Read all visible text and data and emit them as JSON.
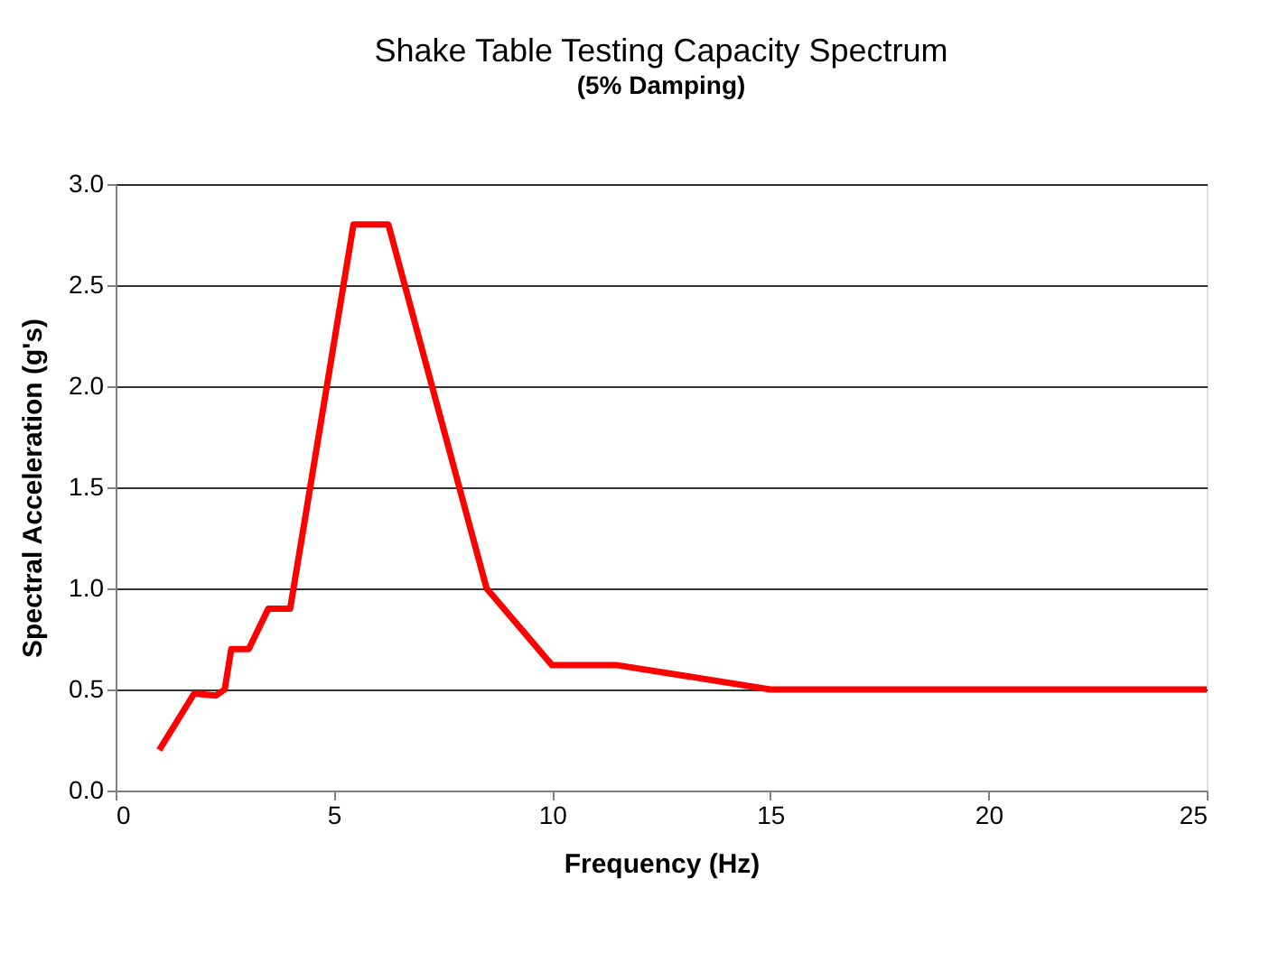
{
  "chart_data": {
    "type": "line",
    "title": "Shake Table Testing Capacity Spectrum",
    "subtitle": "(5% Damping)",
    "xlabel": "Frequency (Hz)",
    "ylabel": "Spectral Acceleration (g's)",
    "x": [
      1.0,
      1.8,
      2.3,
      2.5,
      2.65,
      3.05,
      3.5,
      4.0,
      5.45,
      6.25,
      8.5,
      10.0,
      11.5,
      15.0,
      25.0
    ],
    "series": [
      {
        "color": "#ff0000",
        "values": [
          0.2,
          0.48,
          0.47,
          0.5,
          0.7,
          0.7,
          0.9,
          0.9,
          2.8,
          2.8,
          1.0,
          0.62,
          0.62,
          0.5,
          0.5
        ]
      }
    ],
    "xlim": [
      0,
      25
    ],
    "xticks": [
      0,
      5,
      10,
      15,
      20,
      25
    ],
    "ylim": [
      0,
      3
    ],
    "yticks": [
      {
        "value": 0,
        "label": "0.0"
      },
      0.5,
      {
        "value": 1,
        "label": "1.0"
      },
      1.5,
      {
        "value": 2,
        "label": "2.0"
      },
      2.5,
      {
        "value": 3,
        "label": "3.0"
      }
    ],
    "grid": "y",
    "marker": "none",
    "line_style": "solid"
  }
}
